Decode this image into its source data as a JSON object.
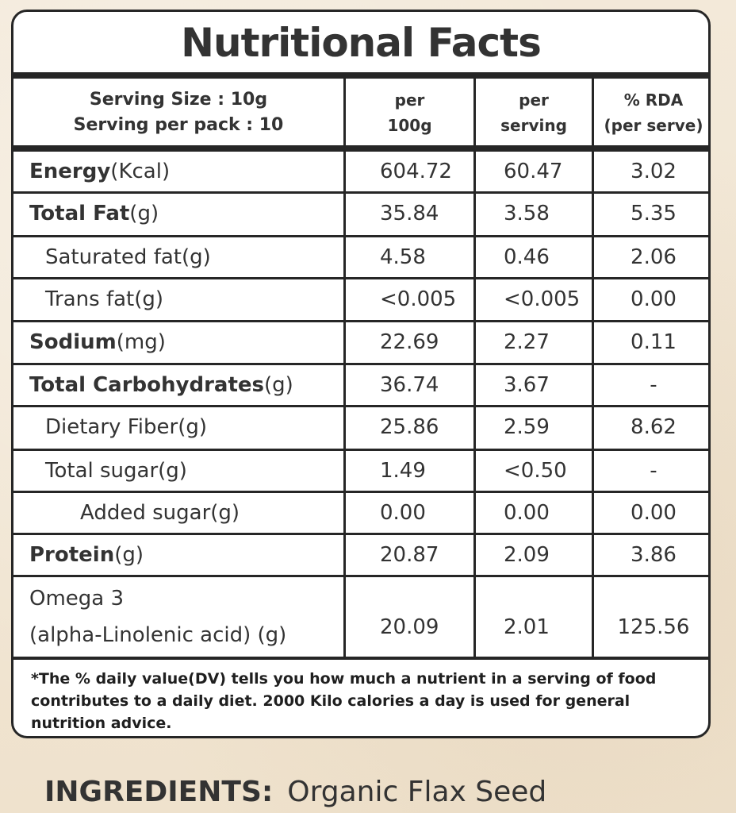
{
  "title": "Nutritional Facts",
  "serving": {
    "size": "Serving Size : 10g",
    "per_pack": "Serving per pack : 10"
  },
  "columns": {
    "c1_line1": "per",
    "c1_line2": "100g",
    "c2_line1": "per",
    "c2_line2": "serving",
    "c3_line1": "% RDA",
    "c3_line2": "(per serve)"
  },
  "rows": [
    {
      "name": "Energy",
      "unit": " (Kcal)",
      "per100g": "604.72",
      "perServing": "60.47",
      "rda": "3.02"
    },
    {
      "name": "Total Fat",
      "unit": " (g)",
      "per100g": "35.84",
      "perServing": "3.58",
      "rda": "5.35"
    },
    {
      "name": "Saturated fat",
      "unit": " (g)",
      "per100g": "4.58",
      "perServing": "0.46",
      "rda": "2.06"
    },
    {
      "name": "Trans fat",
      "unit": " (g)",
      "per100g": "<0.005",
      "perServing": "<0.005",
      "rda": "0.00"
    },
    {
      "name": "Sodium",
      "unit": " (mg)",
      "per100g": "22.69",
      "perServing": "2.27",
      "rda": "0.11"
    },
    {
      "name": "Total Carbohydrates",
      "unit": " (g)",
      "per100g": "36.74",
      "perServing": "3.67",
      "rda": "-"
    },
    {
      "name": "Dietary Fiber",
      "unit": " (g)",
      "per100g": "25.86",
      "perServing": "2.59",
      "rda": "8.62"
    },
    {
      "name": "Total sugar",
      "unit": " (g)",
      "per100g": "1.49",
      "perServing": "<0.50",
      "rda": "-"
    },
    {
      "name": "Added sugar",
      "unit": " (g)",
      "per100g": "0.00",
      "perServing": "0.00",
      "rda": "0.00"
    },
    {
      "name": "Protein",
      "unit": " (g)",
      "per100g": "20.87",
      "perServing": "2.09",
      "rda": "3.86"
    }
  ],
  "omega": {
    "line1": "Omega 3",
    "line2": "(alpha-Linolenic acid) (g)",
    "per100g": "20.09",
    "perServing": "2.01",
    "rda": "125.56"
  },
  "footnote": "*The % daily value(DV) tells you how much a nutrient in a serving of food contributes to a daily diet. 2000 Kilo calories a day is used for general nutrition advice.",
  "ingredients": {
    "label": "INGREDIENTS:",
    "value": "Organic Flax Seed"
  }
}
